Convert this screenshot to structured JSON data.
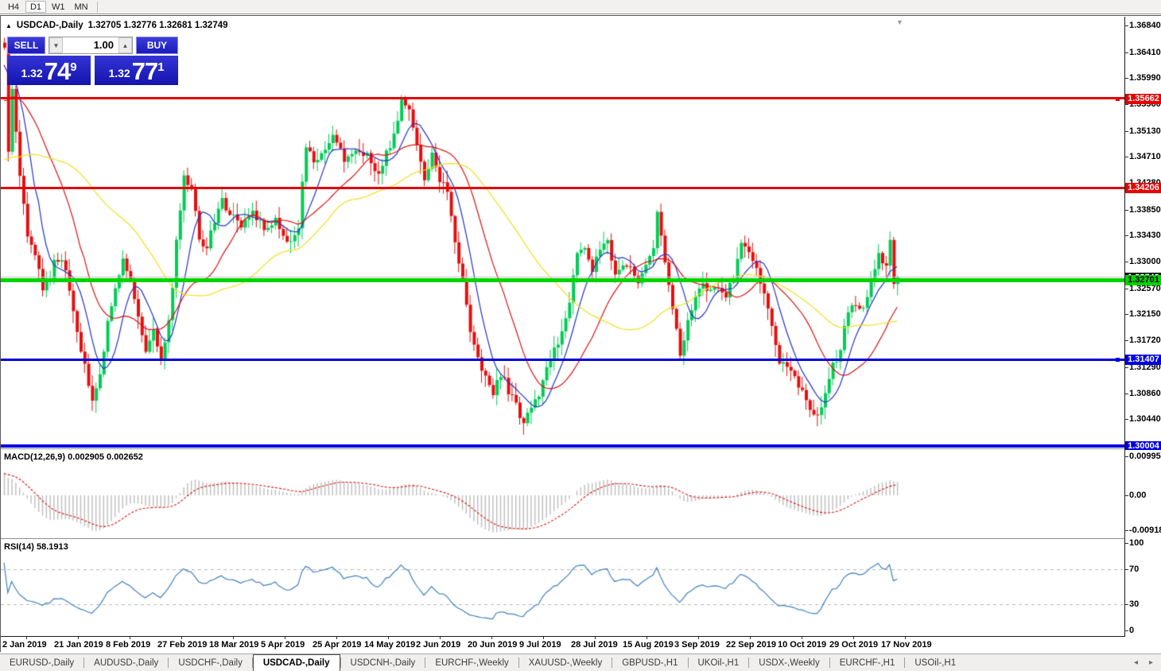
{
  "toolbar": {
    "timeframes": [
      "H4",
      "D1",
      "W1",
      "MN"
    ],
    "active_timeframe": "D1"
  },
  "chart": {
    "title_arrow": "▲",
    "symbol": "USDCAD-,Daily",
    "ohlc_quote": "1.32705 1.32776 1.32681 1.32749",
    "end_marker": "▼"
  },
  "trade_panel": {
    "sell_label": "SELL",
    "buy_label": "BUY",
    "volume": "1.00",
    "spin_down": "▼",
    "spin_up": "▲",
    "sell_price_small": "1.32",
    "sell_price_big": "74",
    "sell_price_sup": "9",
    "buy_price_small": "1.32",
    "buy_price_big": "77",
    "buy_price_sup": "1"
  },
  "price_axis": {
    "ticks": [
      "1.36840",
      "1.36410",
      "1.35990",
      "1.35560",
      "1.35130",
      "1.34710",
      "1.34280",
      "1.33850",
      "1.33430",
      "1.33000",
      "1.32570",
      "1.32150",
      "1.31720",
      "1.31290",
      "1.30860",
      "1.30440"
    ],
    "levels": [
      {
        "price": 1.32749,
        "label": "1.32749",
        "box_color": "#000000",
        "text_color": "#ffffff",
        "line_color": "#c0c0c0",
        "thickness": 1,
        "handle": false
      },
      {
        "price": 1.35662,
        "label": "1.35662",
        "box_color": "#e60000",
        "text_color": "#ffffff",
        "line_color": "#e60000",
        "thickness": 3,
        "handle": true
      },
      {
        "price": 1.34206,
        "label": "1.34206",
        "box_color": "#e60000",
        "text_color": "#ffffff",
        "line_color": "#e60000",
        "thickness": 3,
        "handle": false
      },
      {
        "price": 1.32701,
        "label": "1.32701",
        "box_color": "#00d300",
        "text_color": "#000000",
        "line_color": "#00d300",
        "thickness": 5,
        "handle": true
      },
      {
        "price": 1.31407,
        "label": "1.31407",
        "box_color": "#0000e0",
        "text_color": "#ffffff",
        "line_color": "#0000e0",
        "thickness": 3,
        "handle": true
      },
      {
        "price": 1.30004,
        "label": "1.30004",
        "box_color": "#0000e0",
        "text_color": "#ffffff",
        "line_color": "#0000e0",
        "thickness": 4,
        "handle": false
      }
    ]
  },
  "macd_panel": {
    "label": "MACD(12,26,9) 0.002905 0.002652",
    "axis": [
      {
        "text": "0.009957",
        "value": 0.009957
      },
      {
        "text": "0.00",
        "value": 0.0
      },
      {
        "text": "-0.009186",
        "value": -0.009186
      }
    ]
  },
  "rsi_panel": {
    "label": "RSI(14) 58.1913",
    "axis": [
      {
        "text": "100",
        "value": 100
      },
      {
        "text": "70",
        "value": 70
      },
      {
        "text": "30",
        "value": 30
      },
      {
        "text": "0",
        "value": 0
      }
    ],
    "dashed_levels": [
      70,
      30
    ]
  },
  "date_axis": {
    "labels": [
      "2 Jan 2019",
      "21 Jan 2019",
      "8 Feb 2019",
      "27 Feb 2019",
      "18 Mar 2019",
      "5 Apr 2019",
      "25 Apr 2019",
      "14 May 2019",
      "2 Jun 2019",
      "20 Jun 2019",
      "9 Jul 2019",
      "28 Jul 2019",
      "15 Aug 2019",
      "3 Sep 2019",
      "22 Sep 2019",
      "10 Oct 2019",
      "29 Oct 2019",
      "17 Nov 2019"
    ]
  },
  "tab_bar": {
    "items": [
      "EURUSD-,Daily",
      "AUDUSD-,Daily",
      "USDCHF-,Daily",
      "USDCAD-,Daily",
      "USDCNH-,Daily",
      "EURCHF-,Weekly",
      "XAUUSD-,Weekly",
      "GBPUSD-,H1",
      "UKOil-,H1",
      "USDX-,Weekly",
      "EURCHF-,H1",
      "USOil-,H1"
    ],
    "active": "USDCAD-,Daily",
    "nav_left": "◂",
    "nav_right": "▸"
  },
  "chart_data": {
    "type": "candlestick",
    "symbol": "USDCAD",
    "timeframe": "Daily",
    "x_labels": [
      "2 Jan 2019",
      "21 Jan 2019",
      "8 Feb 2019",
      "27 Feb 2019",
      "18 Mar 2019",
      "5 Apr 2019",
      "25 Apr 2019",
      "14 May 2019",
      "2 Jun 2019",
      "20 Jun 2019",
      "9 Jul 2019",
      "28 Jul 2019",
      "15 Aug 2019",
      "3 Sep 2019",
      "22 Sep 2019",
      "10 Oct 2019",
      "29 Oct 2019",
      "17 Nov 2019"
    ],
    "price_range_visible": [
      1.29971,
      1.36994
    ],
    "current_close": 1.32749,
    "num_candles": 235,
    "close_keypoints": [
      [
        0,
        1.3655
      ],
      [
        1,
        1.348
      ],
      [
        2,
        1.3578
      ],
      [
        4,
        1.344
      ],
      [
        6,
        1.334
      ],
      [
        8,
        1.331
      ],
      [
        10,
        1.326
      ],
      [
        12,
        1.3272
      ],
      [
        13,
        1.33
      ],
      [
        15,
        1.331
      ],
      [
        17,
        1.326
      ],
      [
        19,
        1.318
      ],
      [
        21,
        1.313
      ],
      [
        23,
        1.3072
      ],
      [
        25,
        1.312
      ],
      [
        27,
        1.32
      ],
      [
        29,
        1.326
      ],
      [
        31,
        1.33
      ],
      [
        33,
        1.327
      ],
      [
        35,
        1.321
      ],
      [
        37,
        1.316
      ],
      [
        39,
        1.319
      ],
      [
        41,
        1.314
      ],
      [
        43,
        1.32
      ],
      [
        45,
        1.333
      ],
      [
        47,
        1.3445
      ],
      [
        49,
        1.342
      ],
      [
        51,
        1.334
      ],
      [
        53,
        1.332
      ],
      [
        55,
        1.337
      ],
      [
        57,
        1.34
      ],
      [
        59,
        1.338
      ],
      [
        62,
        1.336
      ],
      [
        65,
        1.3385
      ],
      [
        68,
        1.3355
      ],
      [
        71,
        1.337
      ],
      [
        74,
        1.333
      ],
      [
        77,
        1.336
      ],
      [
        79,
        1.349
      ],
      [
        81,
        1.346
      ],
      [
        83,
        1.348
      ],
      [
        86,
        1.3505
      ],
      [
        89,
        1.3465
      ],
      [
        92,
        1.3485
      ],
      [
        95,
        1.3475
      ],
      [
        98,
        1.3445
      ],
      [
        101,
        1.349
      ],
      [
        104,
        1.356
      ],
      [
        106,
        1.3545
      ],
      [
        108,
        1.3495
      ],
      [
        110,
        1.344
      ],
      [
        112,
        1.3475
      ],
      [
        114,
        1.343
      ],
      [
        116,
        1.342
      ],
      [
        118,
        1.333
      ],
      [
        120,
        1.327
      ],
      [
        122,
        1.3185
      ],
      [
        124,
        1.315
      ],
      [
        126,
        1.311
      ],
      [
        128,
        1.3085
      ],
      [
        130,
        1.312
      ],
      [
        132,
        1.309
      ],
      [
        134,
        1.3065
      ],
      [
        136,
        1.304
      ],
      [
        138,
        1.306
      ],
      [
        140,
        1.3085
      ],
      [
        142,
        1.313
      ],
      [
        144,
        1.3155
      ],
      [
        146,
        1.3185
      ],
      [
        148,
        1.324
      ],
      [
        150,
        1.331
      ],
      [
        152,
        1.333
      ],
      [
        154,
        1.329
      ],
      [
        156,
        1.332
      ],
      [
        158,
        1.333
      ],
      [
        160,
        1.328
      ],
      [
        162,
        1.33
      ],
      [
        164,
        1.329
      ],
      [
        166,
        1.326
      ],
      [
        168,
        1.33
      ],
      [
        170,
        1.332
      ],
      [
        171,
        1.338
      ],
      [
        173,
        1.33
      ],
      [
        175,
        1.322
      ],
      [
        177,
        1.315
      ],
      [
        179,
        1.32
      ],
      [
        181,
        1.324
      ],
      [
        183,
        1.327
      ],
      [
        185,
        1.325
      ],
      [
        187,
        1.3255
      ],
      [
        189,
        1.3245
      ],
      [
        191,
        1.328
      ],
      [
        193,
        1.333
      ],
      [
        195,
        1.331
      ],
      [
        197,
        1.329
      ],
      [
        199,
        1.325
      ],
      [
        201,
        1.319
      ],
      [
        203,
        1.314
      ],
      [
        205,
        1.3125
      ],
      [
        207,
        1.311
      ],
      [
        209,
        1.309
      ],
      [
        211,
        1.3065
      ],
      [
        213,
        1.3048
      ],
      [
        215,
        1.309
      ],
      [
        217,
        1.313
      ],
      [
        219,
        1.316
      ],
      [
        221,
        1.322
      ],
      [
        223,
        1.3235
      ],
      [
        225,
        1.3225
      ],
      [
        227,
        1.327
      ],
      [
        229,
        1.331
      ],
      [
        231,
        1.329
      ],
      [
        232,
        1.333
      ],
      [
        233,
        1.326
      ],
      [
        234,
        1.32749
      ]
    ],
    "bull_color": "#00cc55",
    "bear_color": "#e60f0f",
    "moving_averages": [
      {
        "period": 8,
        "color": "#2233cc",
        "style": "solid"
      },
      {
        "period": 20,
        "color": "#dd1111",
        "style": "solid"
      },
      {
        "period": 45,
        "color": "#f2df1c",
        "style": "solid"
      }
    ],
    "macd": {
      "fast": 12,
      "slow": 26,
      "signal": 9,
      "current_main": 0.002905,
      "current_signal": 0.002652,
      "hist_color": "#bdbdbd",
      "signal_color": "#dd1111",
      "scale_top": 0.009957,
      "scale_bottom": -0.009186
    },
    "rsi": {
      "period": 14,
      "current": 58.1913,
      "color": "#4080c0",
      "levels": [
        70,
        30
      ],
      "scale": [
        0,
        100
      ]
    },
    "horizontal_levels": [
      1.35662,
      1.34206,
      1.32749,
      1.32701,
      1.31407,
      1.30004
    ]
  }
}
